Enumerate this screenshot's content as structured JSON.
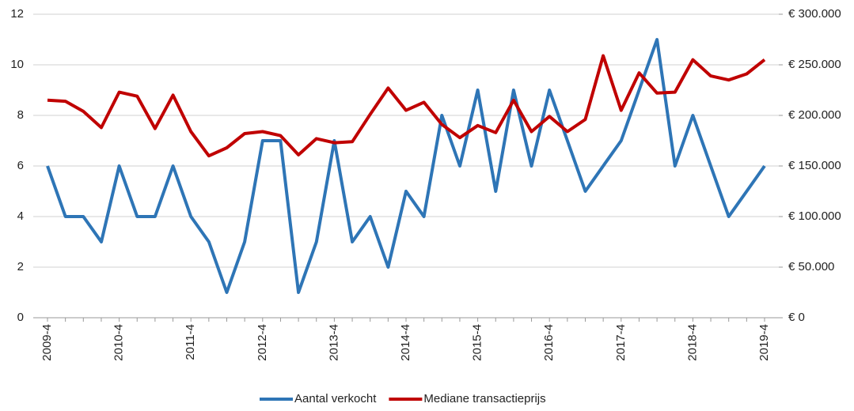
{
  "chart_data": {
    "type": "line",
    "categories": [
      "2009-4",
      null,
      null,
      null,
      "2010-4",
      null,
      null,
      null,
      "2011-4",
      null,
      null,
      null,
      "2012-4",
      null,
      null,
      null,
      "2013-4",
      null,
      null,
      null,
      "2014-4",
      null,
      null,
      null,
      "2015-4",
      null,
      null,
      null,
      "2016-4",
      null,
      null,
      null,
      "2017-4",
      null,
      null,
      null,
      "2018-4",
      null,
      null,
      null,
      "2019-4"
    ],
    "series": [
      {
        "name": "Aantal verkocht",
        "color": "#2e75b6",
        "values": [
          6,
          4,
          4,
          3,
          6,
          4,
          4,
          6,
          4,
          3,
          1,
          3,
          7,
          7,
          1,
          3,
          7,
          3,
          4,
          2,
          5,
          4,
          8,
          6,
          9,
          5,
          9,
          6,
          9,
          7,
          5,
          6,
          7,
          9,
          11,
          6,
          8,
          6,
          4,
          5,
          6
        ]
      },
      {
        "name": "Mediane transactieprijs",
        "color": "#c00000",
        "axis": "y2",
        "values": [
          215000,
          214000,
          204000,
          188000,
          223000,
          219000,
          187000,
          220000,
          184000,
          160000,
          168000,
          182000,
          184000,
          180000,
          161000,
          177000,
          173000,
          174000,
          201000,
          227000,
          205000,
          213000,
          191000,
          178000,
          190000,
          183000,
          215000,
          184000,
          199000,
          184000,
          196000,
          259000,
          205000,
          242000,
          222000,
          223000,
          255000,
          239000,
          235000,
          241000,
          255000
        ]
      }
    ],
    "ylim": [
      0,
      12
    ],
    "yticks": [
      0,
      2,
      4,
      6,
      8,
      10,
      12
    ],
    "y2lim": [
      0,
      300000
    ],
    "y2ticks": [
      {
        "value": 0,
        "label": "€ 0"
      },
      {
        "value": 50000,
        "label": "€ 50.000"
      },
      {
        "value": 100000,
        "label": "€ 100.000"
      },
      {
        "value": 150000,
        "label": "€ 150.000"
      },
      {
        "value": 200000,
        "label": "€ 200.000"
      },
      {
        "value": 250000,
        "label": "€ 250.000"
      },
      {
        "value": 300000,
        "label": "€ 300.000"
      }
    ],
    "grid": true,
    "legend": "bottom"
  }
}
